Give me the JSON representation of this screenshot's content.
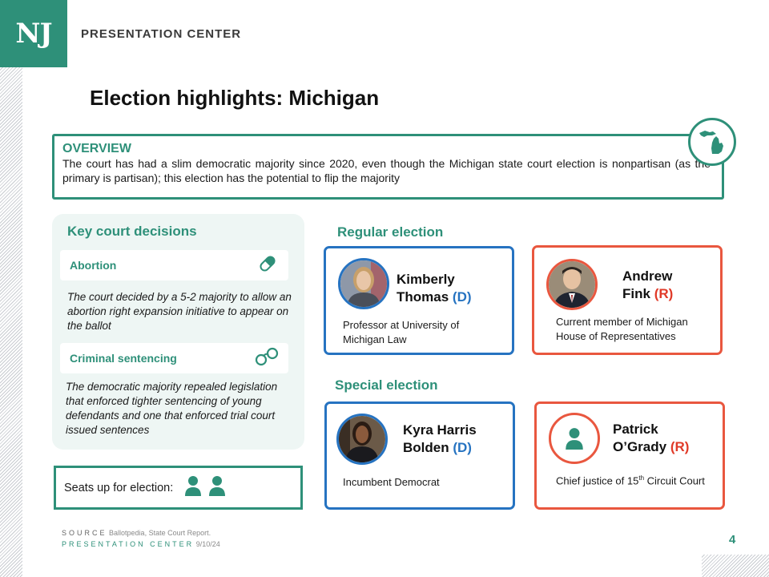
{
  "header": {
    "logo": "NJ",
    "title": "PRESENTATION CENTER"
  },
  "page_title": "Election highlights: Michigan",
  "overview": {
    "heading": "OVERVIEW",
    "text": "The court has had a slim democratic majority since 2020, even though the Michigan state court election is nonpartisan (as the primary is partisan); this election has the potential to flip the majority",
    "icon": "michigan-map-icon"
  },
  "decisions": {
    "heading": "Key court decisions",
    "items": [
      {
        "label": "Abortion",
        "icon": "pill-icon",
        "text": "The court decided by a 5-2 majority to allow  an abortion right expansion initiative to appear on the ballot"
      },
      {
        "label": "Criminal sentencing",
        "icon": "handcuffs-icon",
        "text": "The democratic majority repealed legislation that enforced tighter sentencing of young defendants and one that enforced trial court issued sentences"
      }
    ]
  },
  "seats": {
    "label": "Seats up for election:",
    "count": 2,
    "icon": "person-icon"
  },
  "regular_election": {
    "heading": "Regular election",
    "candidates": [
      {
        "first": "Kimberly",
        "last": "Thomas",
        "party": "(D)",
        "description": "Professor at University of Michigan Law"
      },
      {
        "first": "Andrew",
        "last": "Fink",
        "party": "(R)",
        "description": "Current member of Michigan House of Representatives"
      }
    ]
  },
  "special_election": {
    "heading": "Special election",
    "candidates": [
      {
        "first": "Kyra Harris",
        "last": "Bolden",
        "party": "(D)",
        "description": "Incumbent Democrat"
      },
      {
        "first": "Patrick",
        "last": "O’Grady",
        "party": "(R)",
        "description_pre": "Chief justice of 15",
        "description_sup": "th",
        "description_post": " Circuit Court",
        "icon": "person-icon"
      }
    ]
  },
  "footer": {
    "source_label": "SOURCE",
    "source_text": "Ballotpedia, State Court Report.",
    "center_label": "PRESENTATION CENTER",
    "date": "9/10/24",
    "page_number": "4"
  },
  "colors": {
    "teal": "#2e9079",
    "democrat_blue": "#2673c1",
    "republican_red": "#e9573f"
  }
}
